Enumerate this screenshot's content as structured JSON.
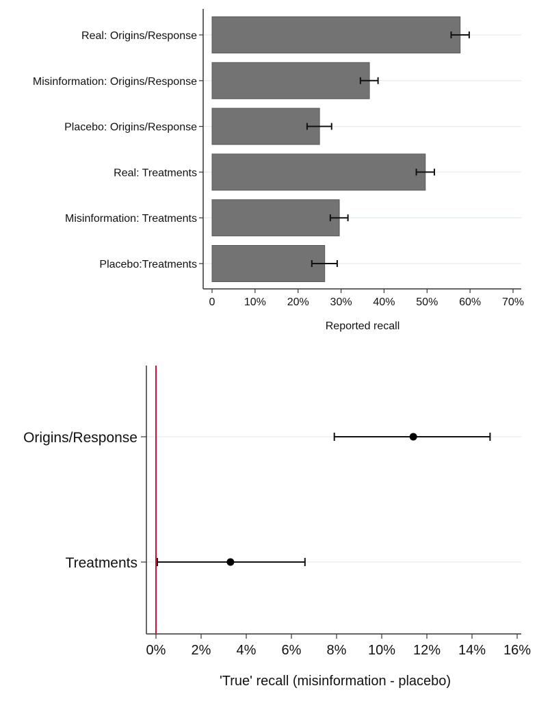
{
  "chart_data": [
    {
      "type": "bar",
      "orientation": "horizontal",
      "categories": [
        "Real: Origins/Response",
        "Misinformation: Origins/Response",
        "Placebo: Origins/Response",
        "Real: Treatments",
        "Misinformation: Treatments",
        "Placebo:Treatments"
      ],
      "values": [
        57.7,
        36.6,
        25.0,
        49.6,
        29.6,
        26.2
      ],
      "ci_low": [
        55.6,
        34.5,
        22.1,
        47.5,
        27.5,
        23.2
      ],
      "ci_high": [
        59.8,
        38.6,
        27.8,
        51.7,
        31.6,
        29.1
      ],
      "title": "",
      "xlabel": "Reported recall",
      "ylabel": "",
      "xlim": [
        0,
        70
      ],
      "xticks": [
        0,
        10,
        20,
        30,
        40,
        50,
        60,
        70
      ],
      "xtick_labels": [
        "0",
        "10%",
        "20%",
        "30%",
        "40%",
        "50%",
        "60%",
        "70%"
      ],
      "grid": "horizontal light lines at category positions",
      "bar_color": "#737373",
      "legend": null
    },
    {
      "type": "scatter",
      "subtype": "coefficient plot with confidence intervals",
      "categories": [
        "Origins/Response",
        "Treatments"
      ],
      "values": [
        11.4,
        3.3
      ],
      "ci_low": [
        7.9,
        0.06
      ],
      "ci_high": [
        14.8,
        6.6
      ],
      "title": "",
      "xlabel": "'True' recall (misinformation - placebo)",
      "ylabel": "",
      "xlim": [
        0,
        16
      ],
      "xticks": [
        0,
        2,
        4,
        6,
        8,
        10,
        12,
        14,
        16
      ],
      "xtick_labels": [
        "0%",
        "2%",
        "4%",
        "6%",
        "8%",
        "10%",
        "12%",
        "14%",
        "16%"
      ],
      "reference_line": {
        "x": 0,
        "color": "#d0103a"
      },
      "grid": "horizontal light lines at category positions",
      "marker_color": "#000000",
      "legend": null
    }
  ]
}
